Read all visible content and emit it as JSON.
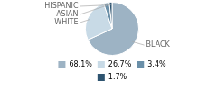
{
  "chart_data": {
    "type": "pie",
    "categories": [
      "BLACK",
      "WHITE",
      "ASIAN",
      "HISPANIC"
    ],
    "values": [
      68.1,
      26.7,
      3.4,
      1.7
    ],
    "value_labels": [
      "68.1%",
      "26.7%",
      "3.4%",
      "1.7%"
    ],
    "colors": [
      "#9db3c4",
      "#c8dae6",
      "#6a8fa8",
      "#2e5470"
    ],
    "legend": "bottom"
  }
}
